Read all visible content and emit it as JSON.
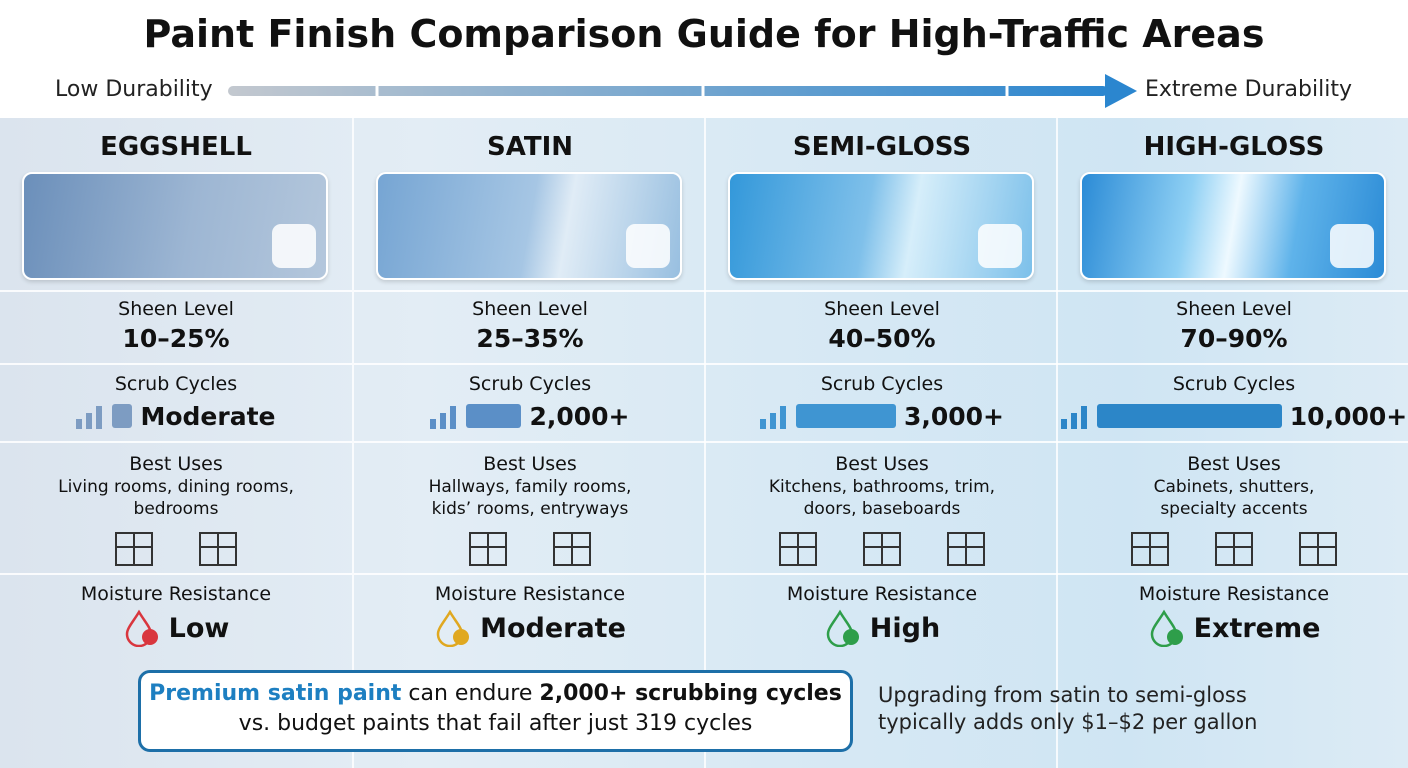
{
  "title": "Paint Finish Comparison Guide for High-Traffic Areas",
  "scale": {
    "low": "Low Durability",
    "high": "Extreme Durability"
  },
  "row_labels": {
    "sheen": "Sheen Level",
    "scrub": "Scrub Cycles",
    "uses": "Best Uses",
    "moisture": "Moisture Resistance"
  },
  "columns": [
    {
      "name": "EGGSHELL",
      "sheen": "10–25%",
      "scrub": "Moderate",
      "uses": [
        "Living rooms, dining rooms,",
        "bedrooms"
      ],
      "moisture": "Low"
    },
    {
      "name": "SATIN",
      "sheen": "25–35%",
      "scrub": "2,000+",
      "uses": [
        "Hallways, family rooms,",
        "kids’ rooms, entryways"
      ],
      "moisture": "Moderate"
    },
    {
      "name": "SEMI-GLOSS",
      "sheen": "40–50%",
      "scrub": "3,000+",
      "uses": [
        "Kitchens, bathrooms, trim,",
        "doors, baseboards"
      ],
      "moisture": "High"
    },
    {
      "name": "HIGH-GLOSS",
      "sheen": "70–90%",
      "scrub": "10,000+",
      "uses": [
        "Cabinets, shutters,",
        "specialty accents"
      ],
      "moisture": "Extreme"
    }
  ],
  "callout": {
    "highlight": "Premium satin paint",
    "text": "can endure",
    "emphasis": "2,000+ scrubbing cycles",
    "line2": "vs. budget paints that fail after just 319 cycles"
  },
  "note": [
    "Upgrading from satin to semi-gloss",
    "typically adds only $1–$2 per gallon"
  ]
}
